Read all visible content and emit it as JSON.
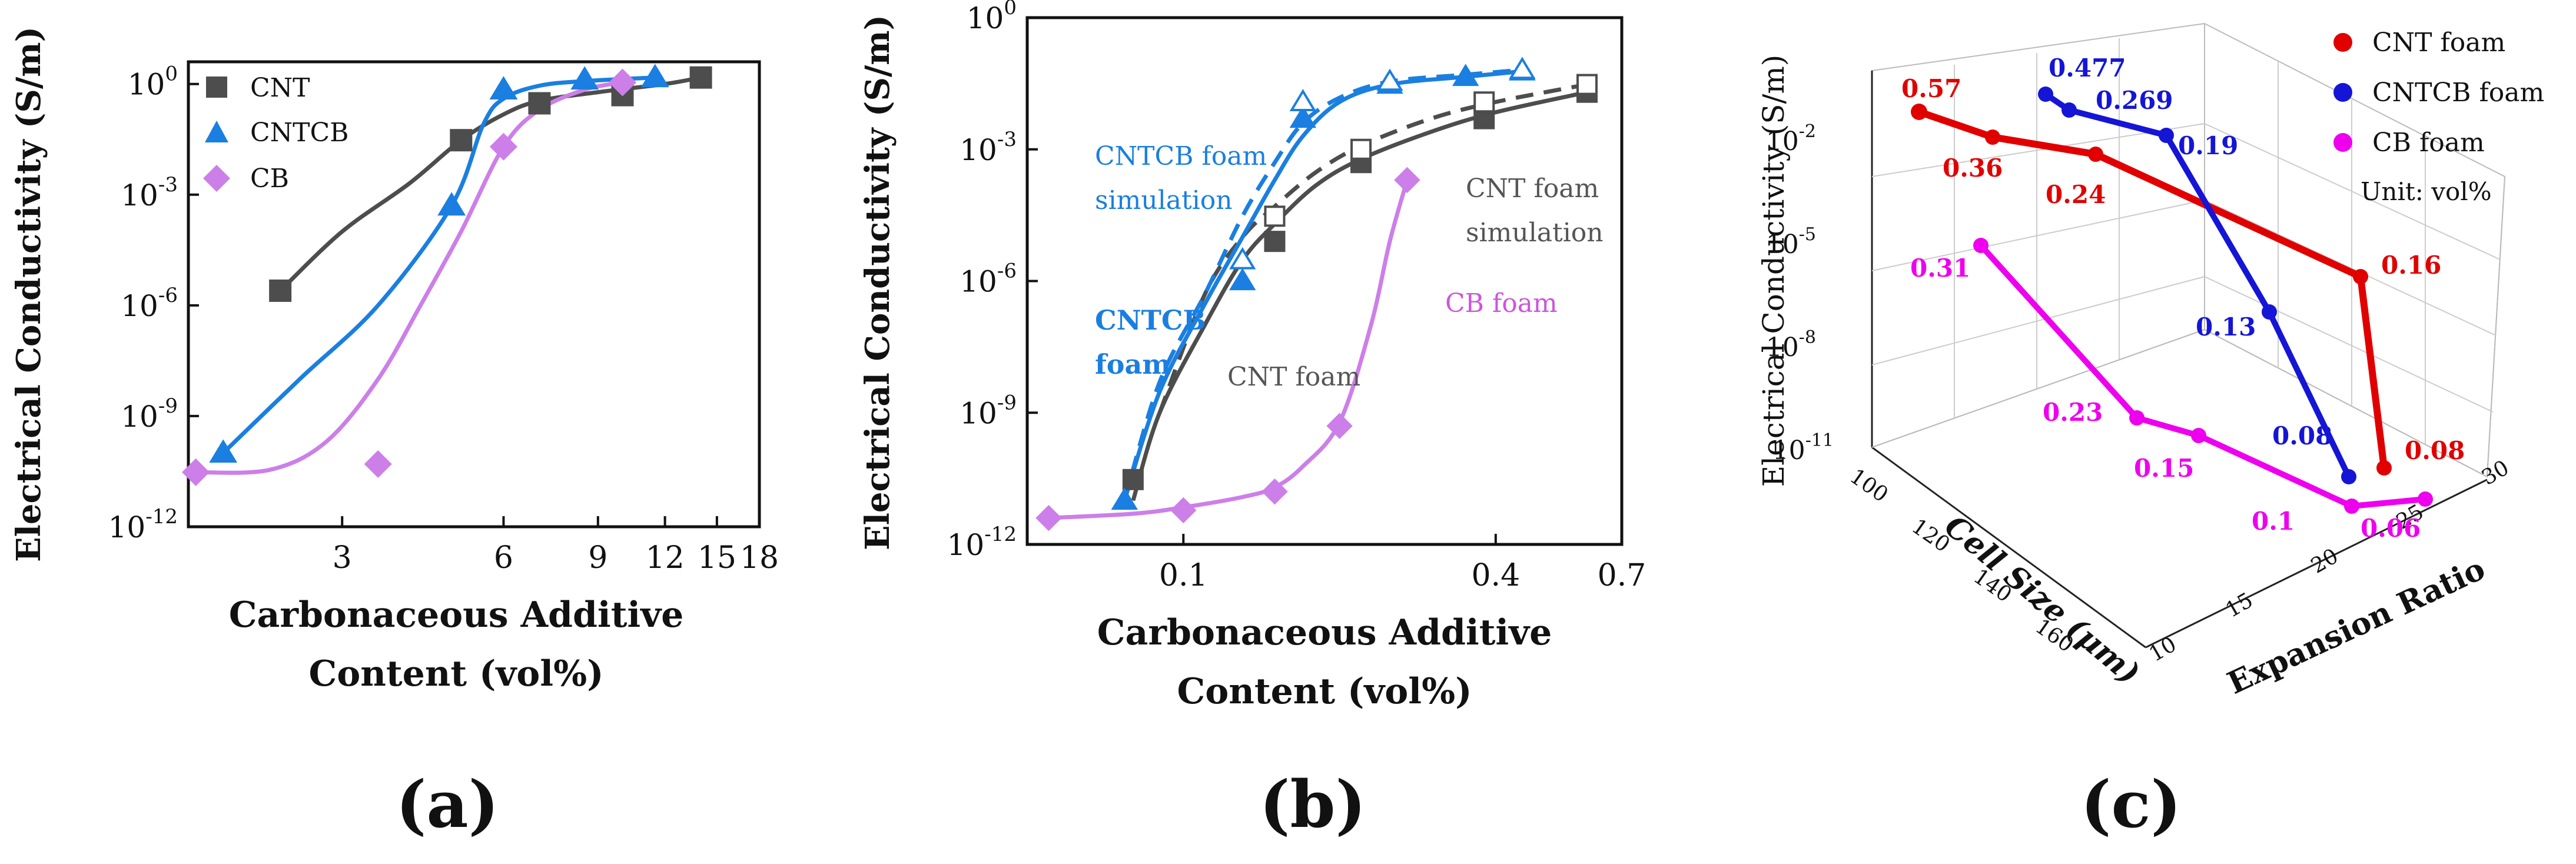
{
  "colors": {
    "cnt": "#4d4d4d",
    "cntcb": "#1a7fe0",
    "cb": "#cc7fe8",
    "foam_cnt": "#e00000",
    "foam_cntcb": "#1515d6",
    "foam_cb": "#ee00ee"
  },
  "panel_labels": [
    "(a)",
    "(b)",
    "(c)"
  ],
  "chart_data": [
    {
      "type": "scatter",
      "panel": "(a)",
      "xscale": "log",
      "yscale": "log",
      "xlabel": [
        "Carbonaceous Additive",
        "Content (vol%)"
      ],
      "ylabel": "Electrical Conductivity (S/m)",
      "xlim": [
        1.55,
        18
      ],
      "ylim": [
        1e-12,
        4
      ],
      "xticks": [
        {
          "v": 3,
          "label": "3"
        },
        {
          "v": 6,
          "label": "6"
        },
        {
          "v": 9,
          "label": "9"
        },
        {
          "v": 12,
          "label": "12"
        },
        {
          "v": 15,
          "label": "15"
        },
        {
          "v": 18,
          "label": "18"
        }
      ],
      "yticks": [
        {
          "v": 1,
          "base": "10",
          "exp": "0"
        },
        {
          "v": 0.001,
          "base": "10",
          "exp": "-3"
        },
        {
          "v": 1e-06,
          "base": "10",
          "exp": "-6"
        },
        {
          "v": 1e-09,
          "base": "10",
          "exp": "-9"
        },
        {
          "v": 1e-12,
          "base": "10",
          "exp": "-12"
        }
      ],
      "legend": {
        "placement": "top-left",
        "entries": [
          "CNT",
          "CNTCB",
          "CB"
        ]
      },
      "series": [
        {
          "name": "CNT",
          "marker": "square",
          "color_key": "cnt",
          "points": [
            [
              2.3,
              2.5e-06
            ],
            [
              5,
              0.03
            ],
            [
              7,
              0.3
            ],
            [
              10,
              0.5
            ],
            [
              14,
              1.5
            ]
          ],
          "fit": [
            [
              2.3,
              2.5e-06
            ],
            [
              3,
              0.0001
            ],
            [
              4,
              0.002
            ],
            [
              5,
              0.03
            ],
            [
              6,
              0.15
            ],
            [
              7,
              0.35
            ],
            [
              9,
              0.6
            ],
            [
              12,
              1.0
            ],
            [
              14,
              1.5
            ]
          ]
        },
        {
          "name": "CNTCB",
          "marker": "triangle",
          "color_key": "cntcb",
          "points": [
            [
              1.8,
              1e-10
            ],
            [
              4.8,
              0.0005
            ],
            [
              6,
              0.7
            ],
            [
              8.5,
              1.3
            ],
            [
              11.5,
              1.5
            ]
          ],
          "fit": [
            [
              1.8,
              1e-10
            ],
            [
              2.5,
              1e-08
            ],
            [
              3.5,
              1e-06
            ],
            [
              4.8,
              0.0005
            ],
            [
              5.5,
              0.08
            ],
            [
              6,
              0.4
            ],
            [
              7,
              0.9
            ],
            [
              8.5,
              1.2
            ],
            [
              11.5,
              1.5
            ]
          ]
        },
        {
          "name": "CB",
          "marker": "diamond",
          "color_key": "cb",
          "points": [
            [
              1.6,
              3e-11
            ],
            [
              3.5,
              5e-11
            ],
            [
              6,
              0.02
            ],
            [
              10,
              1.1
            ]
          ],
          "fit": [
            [
              1.6,
              3e-11
            ],
            [
              2.2,
              3.5e-11
            ],
            [
              2.8,
              2e-10
            ],
            [
              3.5,
              1e-08
            ],
            [
              4.2,
              1e-06
            ],
            [
              5,
              0.0001
            ],
            [
              6,
              0.02
            ],
            [
              7,
              0.2
            ],
            [
              8.5,
              0.7
            ],
            [
              10,
              1.1
            ]
          ]
        }
      ]
    },
    {
      "type": "scatter",
      "panel": "(b)",
      "xscale": "log",
      "yscale": "log",
      "xlabel": [
        "Carbonaceous Additive",
        "Content (vol%)"
      ],
      "ylabel": "Electrical Conductivity (S/m)",
      "xlim": [
        0.05,
        0.7
      ],
      "ylim": [
        1e-12,
        1
      ],
      "xticks": [
        {
          "v": 0.1,
          "label": "0.1"
        },
        {
          "v": 0.4,
          "label": "0.4"
        },
        {
          "v": 0.7,
          "label": "0.7"
        }
      ],
      "yticks": [
        {
          "v": 1,
          "base": "10",
          "exp": "0"
        },
        {
          "v": 0.001,
          "base": "10",
          "exp": "-3"
        },
        {
          "v": 1e-06,
          "base": "10",
          "exp": "-6"
        },
        {
          "v": 1e-09,
          "base": "10",
          "exp": "-9"
        },
        {
          "v": 1e-12,
          "base": "10",
          "exp": "-12"
        }
      ],
      "series": [
        {
          "name": "CNT foam",
          "marker": "square",
          "color_key": "cnt",
          "points": [
            [
              0.08,
              3e-11
            ],
            [
              0.15,
              8e-06
            ],
            [
              0.22,
              0.0005
            ],
            [
              0.38,
              0.005
            ],
            [
              0.6,
              0.02
            ]
          ],
          "fit": [
            [
              0.08,
              1e-11
            ],
            [
              0.09,
              1e-09
            ],
            [
              0.11,
              1e-07
            ],
            [
              0.13,
              3e-06
            ],
            [
              0.15,
              2e-05
            ],
            [
              0.18,
              0.00015
            ],
            [
              0.22,
              0.0006
            ],
            [
              0.3,
              0.0025
            ],
            [
              0.4,
              0.007
            ],
            [
              0.6,
              0.02
            ]
          ]
        },
        {
          "name": "CNT foam simulation",
          "marker": "open-square",
          "color_key": "cnt",
          "points": [
            [
              0.15,
              3e-05
            ],
            [
              0.22,
              0.001
            ],
            [
              0.38,
              0.012
            ],
            [
              0.6,
              0.03
            ]
          ],
          "fit": [
            [
              0.09,
              1e-09
            ],
            [
              0.11,
              5e-07
            ],
            [
              0.13,
              1e-05
            ],
            [
              0.15,
              5e-05
            ],
            [
              0.18,
              0.0003
            ],
            [
              0.22,
              0.0012
            ],
            [
              0.3,
              0.005
            ],
            [
              0.4,
              0.012
            ],
            [
              0.6,
              0.03
            ]
          ],
          "dashed": true
        },
        {
          "name": "CNTCB foam",
          "marker": "triangle",
          "color_key": "cntcb",
          "points": [
            [
              0.077,
              1e-11
            ],
            [
              0.13,
              1e-06
            ],
            [
              0.17,
              0.005
            ],
            [
              0.25,
              0.03
            ],
            [
              0.35,
              0.045
            ],
            [
              0.45,
              0.06
            ]
          ],
          "fit": [
            [
              0.077,
              1e-11
            ],
            [
              0.09,
              3e-09
            ],
            [
              0.11,
              3e-07
            ],
            [
              0.13,
              1e-05
            ],
            [
              0.15,
              0.0002
            ],
            [
              0.17,
              0.002
            ],
            [
              0.2,
              0.012
            ],
            [
              0.25,
              0.03
            ],
            [
              0.35,
              0.045
            ],
            [
              0.45,
              0.06
            ]
          ]
        },
        {
          "name": "CNTCB foam simulation",
          "marker": "open-triangle",
          "color_key": "cntcb",
          "points": [
            [
              0.13,
              3e-06
            ],
            [
              0.17,
              0.012
            ],
            [
              0.25,
              0.035
            ],
            [
              0.45,
              0.065
            ]
          ],
          "fit": [
            [
              0.077,
              1e-11
            ],
            [
              0.09,
              5e-09
            ],
            [
              0.11,
              5e-07
            ],
            [
              0.13,
              3e-05
            ],
            [
              0.15,
              0.0005
            ],
            [
              0.17,
              0.004
            ],
            [
              0.2,
              0.015
            ],
            [
              0.25,
              0.035
            ],
            [
              0.35,
              0.05
            ],
            [
              0.45,
              0.065
            ]
          ],
          "dashed": true
        },
        {
          "name": "CB foam",
          "marker": "diamond",
          "color_key": "cb",
          "points": [
            [
              0.055,
              4e-12
            ],
            [
              0.1,
              6e-12
            ],
            [
              0.15,
              1.6e-11
            ],
            [
              0.2,
              5e-10
            ],
            [
              0.27,
              0.0002
            ]
          ],
          "fit": [
            [
              0.055,
              4e-12
            ],
            [
              0.08,
              5e-12
            ],
            [
              0.1,
              7e-12
            ],
            [
              0.13,
              1.2e-11
            ],
            [
              0.15,
              2e-11
            ],
            [
              0.17,
              6e-11
            ],
            [
              0.2,
              6e-10
            ],
            [
              0.23,
              1e-07
            ],
            [
              0.25,
              8e-06
            ],
            [
              0.27,
              0.0002
            ]
          ]
        }
      ],
      "annotations": {
        "cntcb_sim": [
          "CNTCB foam",
          "simulation"
        ],
        "cnt_sim": [
          "CNT foam",
          "simulation"
        ],
        "cntcb_foam": [
          "CNTCB",
          "foam"
        ],
        "cnt_foam": "CNT foam",
        "cb_foam": "CB foam"
      }
    },
    {
      "type": "scatter3d",
      "panel": "(c)",
      "zlabel": "Electrical Conductivity (S/m)",
      "ylabel": "Cell Size (μm)",
      "xlabel": "Expansion Ratio",
      "zscale": "log",
      "zticks": [
        {
          "v": 0.01,
          "base": "10",
          "exp": "-2"
        },
        {
          "v": 1e-05,
          "base": "10",
          "exp": "-5"
        },
        {
          "v": 1e-08,
          "base": "10",
          "exp": "-8"
        },
        {
          "v": 1e-11,
          "base": "10",
          "exp": "-11"
        }
      ],
      "cell_size_ticks": [
        "100",
        "120",
        "140",
        "160"
      ],
      "expansion_ticks": [
        "10",
        "15",
        "20",
        "25",
        "30"
      ],
      "legend": {
        "placement": "top-right",
        "entries": [
          "CNT foam",
          "CNTCB foam",
          "CB foam"
        ],
        "note": "Unit: vol%"
      },
      "series": [
        {
          "name": "CNT foam",
          "color_key": "foam_cnt",
          "labels": [
            "0.57",
            "0.36",
            "0.24",
            "0.16",
            "0.08"
          ]
        },
        {
          "name": "CNTCB foam",
          "color_key": "foam_cntcb",
          "labels": [
            "0.477",
            "0.269",
            "0.19",
            "0.13",
            "0.08"
          ]
        },
        {
          "name": "CB foam",
          "color_key": "foam_cb",
          "labels": [
            "0.31",
            "0.23",
            "0.15",
            "0.1",
            "0.06"
          ]
        }
      ]
    }
  ]
}
